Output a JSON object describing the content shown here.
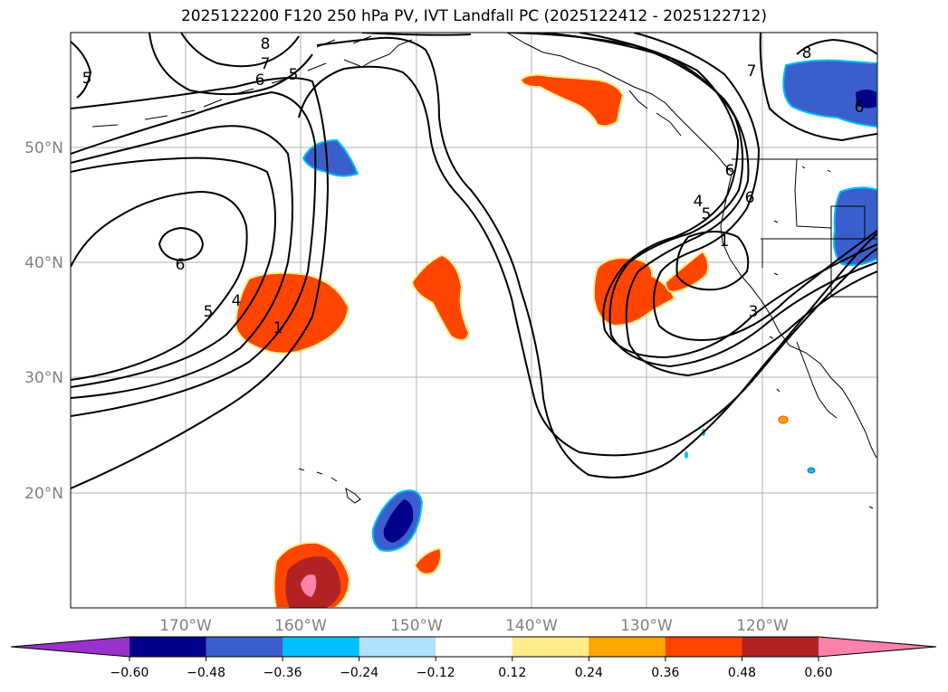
{
  "title": "2025122200 F120 250 hPa PV, IVT Landfall PC (2025122412 - 2025122712)",
  "map": {
    "lat_labels": [
      "50°N",
      "40°N",
      "30°N",
      "20°N"
    ],
    "lon_labels": [
      "170°W",
      "160°W",
      "150°W",
      "140°W",
      "130°W",
      "120°W"
    ],
    "pv_contour_labels": [
      "5",
      "8",
      "7",
      "6",
      "5",
      "6",
      "5",
      "4",
      "1",
      "7",
      "6",
      "4",
      "5",
      "6",
      "1",
      "3",
      "8",
      "6"
    ]
  },
  "colorbar": {
    "colors": [
      "#9932cc",
      "#00008b",
      "#3a5fcd",
      "#00bfff",
      "#b0e2ff",
      "#ffffff",
      "#ffec8b",
      "#ffa500",
      "#ff4500",
      "#b22222",
      "#ff82ab"
    ],
    "tick_labels": [
      "−0.60",
      "−0.48",
      "−0.36",
      "−0.24",
      "−0.12",
      "0.12",
      "0.24",
      "0.36",
      "0.48",
      "0.60"
    ]
  }
}
